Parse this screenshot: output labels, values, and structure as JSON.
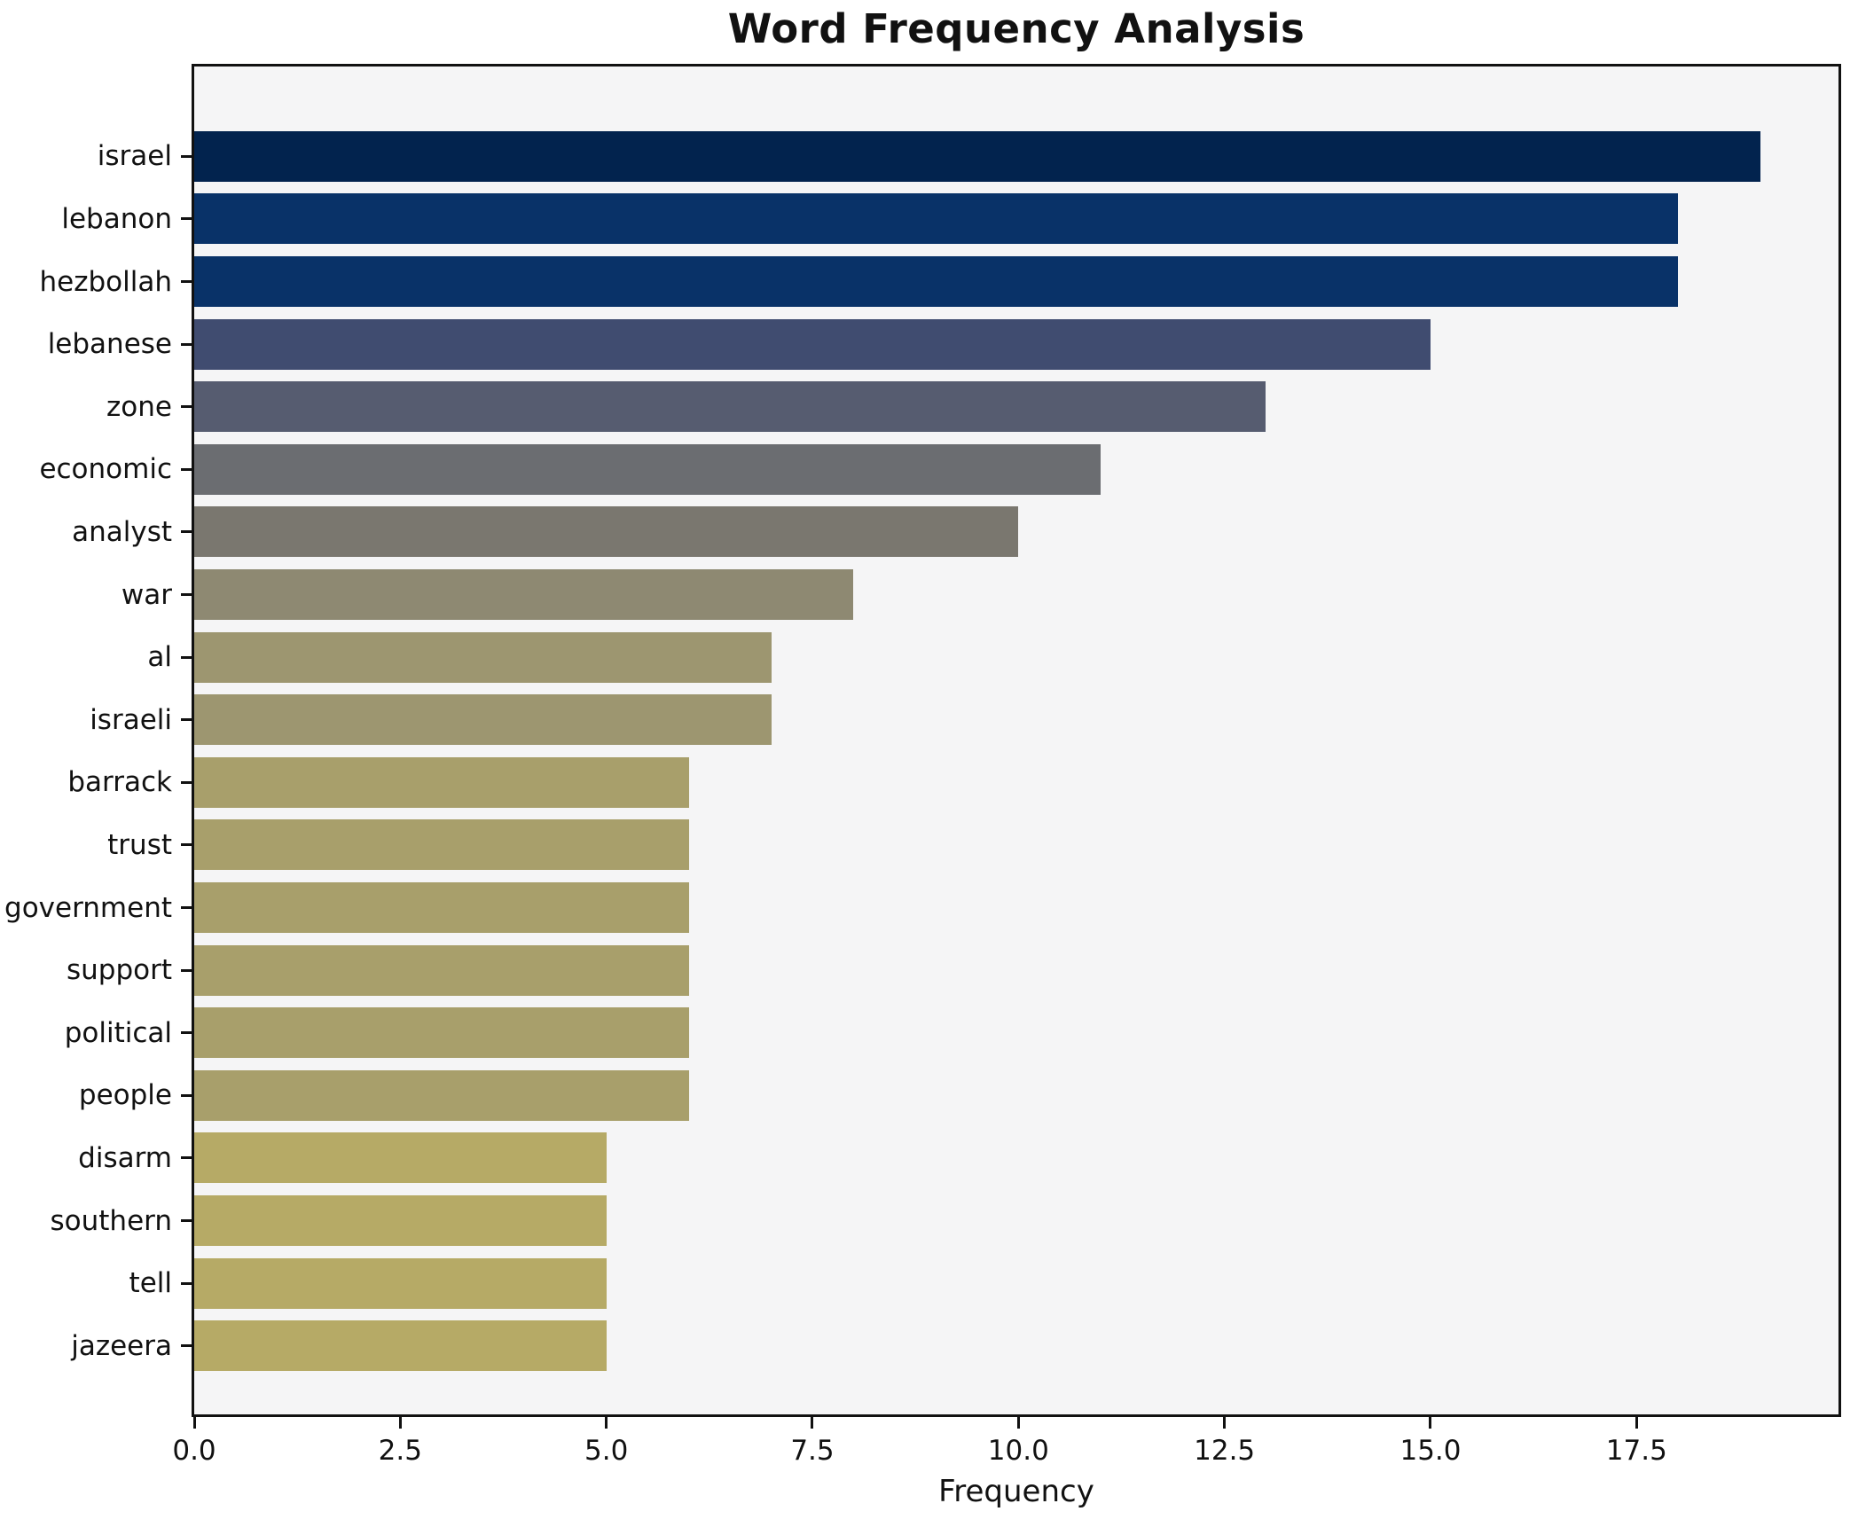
{
  "title": "Word Frequency Analysis",
  "chart_data": {
    "type": "bar",
    "orientation": "horizontal",
    "title": "Word Frequency Analysis",
    "xlabel": "Frequency",
    "ylabel": "",
    "grid": false,
    "legend": null,
    "xlim": [
      0,
      19.95
    ],
    "xticks": [
      0.0,
      2.5,
      5.0,
      7.5,
      10.0,
      12.5,
      15.0,
      17.5
    ],
    "xtick_labels": [
      "0.0",
      "2.5",
      "5.0",
      "7.5",
      "10.0",
      "12.5",
      "15.0",
      "17.5"
    ],
    "categories": [
      "israel",
      "lebanon",
      "hezbollah",
      "lebanese",
      "zone",
      "economic",
      "analyst",
      "war",
      "al",
      "israeli",
      "barrack",
      "trust",
      "government",
      "support",
      "political",
      "people",
      "disarm",
      "southern",
      "tell",
      "jazeera"
    ],
    "values": [
      19,
      18,
      18,
      15,
      13,
      11,
      10,
      8,
      7,
      7,
      6,
      6,
      6,
      6,
      6,
      6,
      5,
      5,
      5,
      5
    ],
    "bar_colors": [
      "#02234e",
      "#093268",
      "#093268",
      "#404c70",
      "#565c70",
      "#6b6d71",
      "#7a776f",
      "#8e8972",
      "#9d9670",
      "#9d9670",
      "#a89f6b",
      "#a89f6b",
      "#a89f6b",
      "#a89f6b",
      "#a89f6b",
      "#a89f6b",
      "#b6aa66",
      "#b6aa66",
      "#b6aa66",
      "#b6aa66"
    ],
    "colors": {
      "figure_background": "#ffffff",
      "plot_background": "#f5f5f6",
      "spine": "#111111",
      "text": "#111111"
    }
  }
}
